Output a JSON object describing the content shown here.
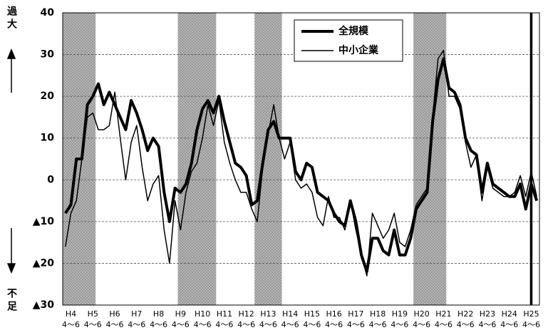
{
  "chart_data": {
    "type": "line",
    "top_label": "過大",
    "bottom_label": "不足",
    "quarter_label": "4～6",
    "categories": [
      null,
      "H4",
      null,
      null,
      null,
      "H5",
      null,
      null,
      null,
      "H6",
      null,
      null,
      null,
      "H7",
      null,
      null,
      null,
      "H8",
      null,
      null,
      null,
      "H9",
      null,
      null,
      null,
      "H10",
      null,
      null,
      null,
      "H11",
      null,
      null,
      null,
      "H12",
      null,
      null,
      null,
      "H13",
      null,
      null,
      null,
      "H14",
      null,
      null,
      null,
      "H15",
      null,
      null,
      null,
      "H16",
      null,
      null,
      null,
      "H17",
      null,
      null,
      null,
      "H18",
      null,
      null,
      null,
      "H19",
      null,
      null,
      null,
      "H20",
      null,
      null,
      null,
      "H21",
      null,
      null,
      null,
      "H22",
      null,
      null,
      null,
      "H23",
      null,
      null,
      null,
      "H24",
      null,
      null,
      null,
      "H25",
      null
    ],
    "series": [
      {
        "name": "全規模",
        "color": "#000000",
        "width": 4,
        "values": [
          -8,
          -6,
          5,
          5,
          18,
          20,
          23,
          18,
          21,
          18,
          15,
          12,
          19,
          16,
          12,
          7,
          10,
          8,
          -3,
          -10,
          -2,
          -3,
          -1,
          4,
          12,
          17,
          19,
          16,
          20,
          14,
          9,
          4,
          3,
          1,
          -6,
          -5,
          4,
          12,
          14,
          10,
          10,
          10,
          2,
          0,
          4,
          3,
          -3,
          -4,
          -5,
          -8,
          -10,
          -11,
          -5,
          -10,
          -18,
          -22,
          -14,
          -14,
          -17,
          -18,
          -12,
          -18,
          -18,
          -14,
          -7,
          -5,
          -3,
          14,
          24,
          29,
          22,
          21,
          18,
          10,
          7,
          6,
          -3,
          4,
          -1,
          -2,
          -3,
          -4,
          -4,
          -1,
          -7,
          -1,
          -5
        ]
      },
      {
        "name": "中小企業",
        "color": "#000000",
        "width": 1.5,
        "values": [
          -16,
          -8,
          -5,
          5,
          15,
          16,
          12,
          12,
          13,
          21,
          10,
          0,
          9,
          13,
          3,
          -5,
          -1,
          1,
          -12,
          -20,
          -5,
          -12,
          -3,
          2,
          4,
          10,
          18,
          13,
          19,
          9,
          4,
          0,
          -3,
          -3,
          -7,
          -10,
          3,
          11,
          18,
          10,
          5,
          9,
          0,
          -2,
          -1,
          -3,
          -9,
          -11,
          -4,
          -9,
          -9,
          -12,
          -5,
          -12,
          -18,
          -23,
          -8,
          -11,
          -14,
          -12,
          -8,
          -15,
          -16,
          -12,
          -6,
          -4,
          -2,
          15,
          29,
          31,
          20,
          20,
          17,
          9,
          3,
          6,
          -5,
          3,
          -2,
          -3,
          -4,
          -4,
          -3,
          1,
          -4,
          2,
          -4
        ]
      }
    ],
    "shaded_periods": [
      [
        0,
        5
      ],
      [
        21,
        27
      ],
      [
        35,
        39
      ],
      [
        64,
        69
      ]
    ],
    "marker_index": 85,
    "ylim": [
      -30,
      40
    ],
    "yticks": [
      {
        "value": -30,
        "label": "▲30"
      },
      {
        "value": -20,
        "label": "▲20"
      },
      {
        "value": -10,
        "label": "▲10"
      },
      0,
      10,
      20,
      30,
      40
    ],
    "grid": true
  }
}
